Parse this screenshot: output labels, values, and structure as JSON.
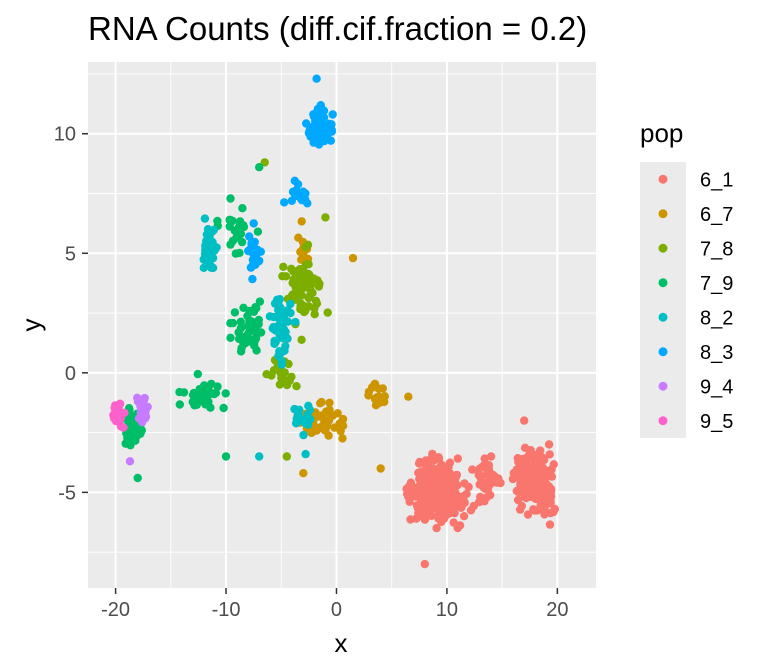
{
  "chart_data": {
    "type": "scatter",
    "title": "RNA Counts (diff.cif.fraction = 0.2)",
    "xlabel": "x",
    "ylabel": "y",
    "xlim": [
      -22.5,
      23.5
    ],
    "ylim": [
      -9.0,
      13.0
    ],
    "x_ticks": [
      -20,
      -10,
      0,
      10,
      20
    ],
    "x_tick_labels": [
      "-20",
      "-10",
      "0",
      "10",
      "20"
    ],
    "y_ticks": [
      -5,
      0,
      5,
      10
    ],
    "y_tick_labels": [
      "-5",
      "0",
      "5",
      "10"
    ],
    "grid": true,
    "legend": {
      "title": "pop",
      "position": "right"
    },
    "series": [
      {
        "name": "6_1",
        "color": "#F8766D",
        "clusters": [
          {
            "center": [
              9,
              -5
            ],
            "spread": [
              3.2,
              1.5
            ],
            "count": 300
          },
          {
            "center": [
              18,
              -4.5
            ],
            "spread": [
              2.3,
              1.5
            ],
            "count": 210
          },
          {
            "center": [
              13.5,
              -4.5
            ],
            "spread": [
              1.8,
              1.0
            ],
            "count": 40
          }
        ],
        "points": [
          [
            8,
            -8
          ],
          [
            17,
            -2
          ],
          [
            14,
            -3.5
          ]
        ]
      },
      {
        "name": "6_7",
        "color": "#CD9600",
        "clusters": [
          {
            "center": [
              -1,
              -2
            ],
            "spread": [
              2.2,
              1.0
            ],
            "count": 50
          },
          {
            "center": [
              -3,
              5
            ],
            "spread": [
              1.0,
              1.2
            ],
            "count": 20
          },
          {
            "center": [
              3.5,
              -1
            ],
            "spread": [
              1.2,
              0.8
            ],
            "count": 15
          }
        ],
        "points": [
          [
            1.5,
            4.8
          ],
          [
            4,
            -4
          ],
          [
            -3,
            -4.2
          ],
          [
            6.5,
            -1
          ]
        ]
      },
      {
        "name": "7_8",
        "color": "#7CAE00",
        "clusters": [
          {
            "center": [
              -3,
              3.5
            ],
            "spread": [
              1.8,
              1.8
            ],
            "count": 80
          },
          {
            "center": [
              -5,
              0
            ],
            "spread": [
              1.5,
              1.0
            ],
            "count": 20
          }
        ],
        "points": [
          [
            -6.5,
            8.8
          ],
          [
            -1,
            6.5
          ],
          [
            -4.5,
            -3.5
          ]
        ]
      },
      {
        "name": "7_9",
        "color": "#00BE67",
        "clusters": [
          {
            "center": [
              -18.5,
              -2.3
            ],
            "spread": [
              1.2,
              1.0
            ],
            "count": 45
          },
          {
            "center": [
              -12,
              -1
            ],
            "spread": [
              2.5,
              0.8
            ],
            "count": 40
          },
          {
            "center": [
              -8,
              2
            ],
            "spread": [
              2.0,
              1.5
            ],
            "count": 45
          },
          {
            "center": [
              -9,
              6
            ],
            "spread": [
              2.2,
              1.3
            ],
            "count": 25
          }
        ],
        "points": [
          [
            -18,
            -4.4
          ],
          [
            -10,
            -3.5
          ],
          [
            -7,
            8.6
          ]
        ]
      },
      {
        "name": "8_2",
        "color": "#00BFC4",
        "clusters": [
          {
            "center": [
              -11.5,
              5
            ],
            "spread": [
              0.9,
              1.4
            ],
            "count": 35
          },
          {
            "center": [
              -5,
              2
            ],
            "spread": [
              1.5,
              2.0
            ],
            "count": 45
          },
          {
            "center": [
              -3,
              -2
            ],
            "spread": [
              1.2,
              1.0
            ],
            "count": 15
          }
        ],
        "points": [
          [
            -7,
            -3.5
          ],
          [
            -2.8,
            -3.4
          ]
        ]
      },
      {
        "name": "8_3",
        "color": "#00A9FF",
        "clusters": [
          {
            "center": [
              -1.5,
              10.2
            ],
            "spread": [
              1.2,
              1.0
            ],
            "count": 90
          },
          {
            "center": [
              -7.5,
              5
            ],
            "spread": [
              0.8,
              1.0
            ],
            "count": 25
          },
          {
            "center": [
              -3.5,
              7.5
            ],
            "spread": [
              1.2,
              0.8
            ],
            "count": 15
          }
        ],
        "points": [
          [
            -1.8,
            12.3
          ]
        ]
      },
      {
        "name": "9_4",
        "color": "#C77CFF",
        "clusters": [
          {
            "center": [
              -17.5,
              -1.6
            ],
            "spread": [
              0.6,
              0.8
            ],
            "count": 25
          }
        ],
        "points": [
          [
            -18.7,
            -3.7
          ]
        ]
      },
      {
        "name": "9_5",
        "color": "#FF61CC",
        "clusters": [
          {
            "center": [
              -19.8,
              -1.8
            ],
            "spread": [
              0.6,
              0.6
            ],
            "count": 25
          }
        ],
        "points": []
      }
    ]
  },
  "colors": {
    "panel_background": "#EBEBEB",
    "grid_major": "#FFFFFF",
    "tick_mark": "#333333"
  }
}
